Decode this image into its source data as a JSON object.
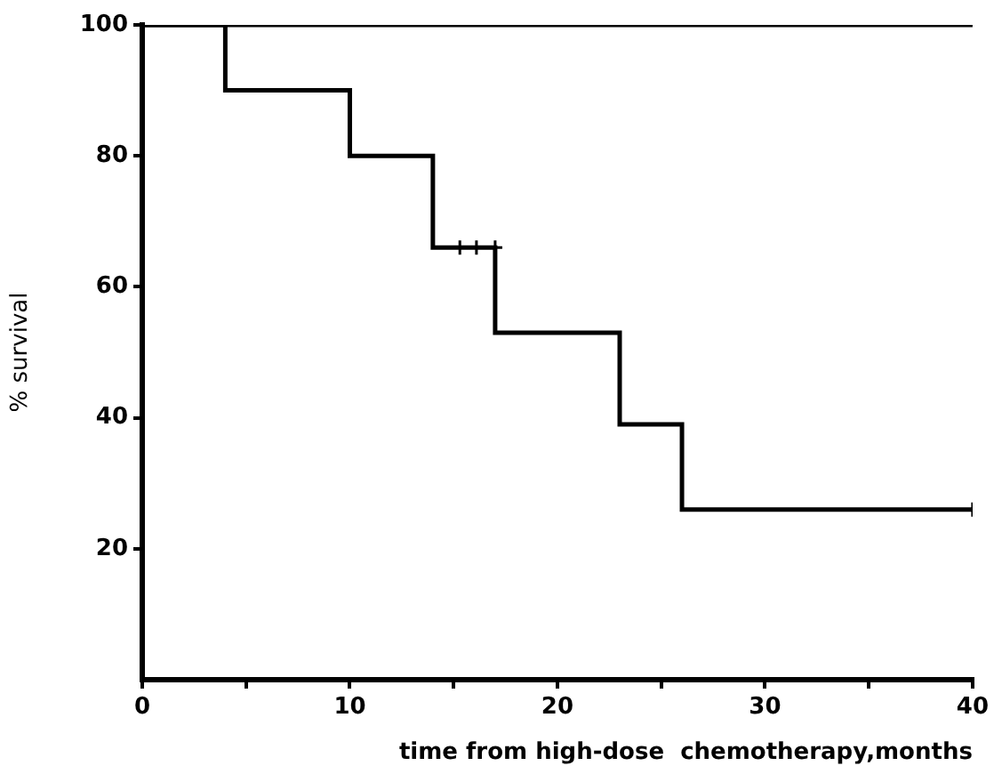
{
  "chart_data": {
    "type": "step",
    "xlabel": "time from high-dose  chemotherapy,months",
    "ylabel": "% survival",
    "series": [
      {
        "color": "#000000",
        "x": [
          0,
          40
        ],
        "values": [
          100,
          100
        ]
      },
      {
        "color": "#000000",
        "x": [
          0,
          4,
          10,
          14,
          17,
          23,
          26,
          40
        ],
        "values": [
          100,
          90,
          80,
          66,
          53,
          39,
          26,
          26
        ]
      },
      {
        "type": "scatter",
        "marker": "cross",
        "color": "#000000",
        "x": [
          15.3,
          16.1,
          17,
          40
        ],
        "values": [
          66,
          66,
          66,
          26
        ]
      }
    ],
    "xlim": [
      0,
      40
    ],
    "xticks": [
      0,
      {
        "value": 5,
        "label": null
      },
      10,
      {
        "value": 15,
        "label": null
      },
      20,
      {
        "value": 25,
        "label": null
      },
      30,
      {
        "value": 35,
        "label": null
      },
      40
    ],
    "ylim": [
      0,
      100
    ],
    "yticks": [
      20,
      40,
      60,
      80,
      100
    ],
    "grid": false,
    "legend": false
  }
}
